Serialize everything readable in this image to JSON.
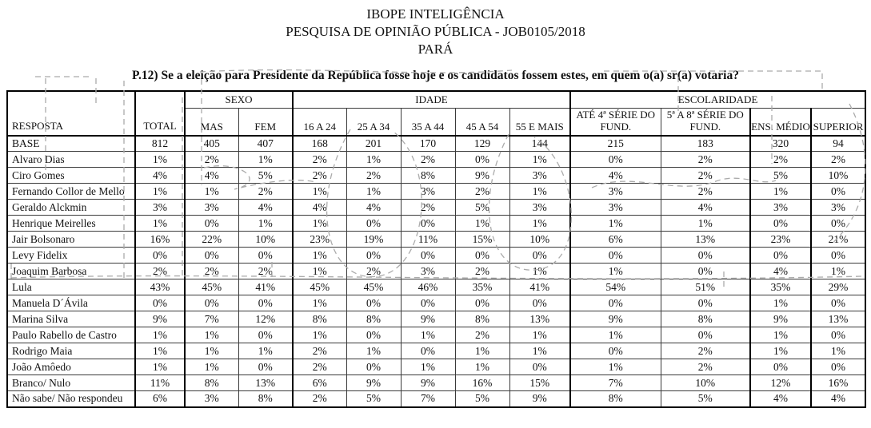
{
  "header": {
    "title_line1": "IBOPE INTELIGÊNCIA",
    "title_line2": "PESQUISA DE OPINIÃO PÚBLICA - JOB0105/2018",
    "title_line3": "PARÁ",
    "question": "P.12) Se a eleição para Presidente da República fosse hoje e os candidatos fossem estes, em quem o(a) sr(a) votaria?"
  },
  "table": {
    "corner_label": "RESPOSTA",
    "total_label": "TOTAL",
    "groups": [
      {
        "label": "SEXO",
        "span": 2
      },
      {
        "label": "IDADE",
        "span": 5
      },
      {
        "label": "ESCOLARIDADE",
        "span": 4
      }
    ],
    "columns": [
      "MAS",
      "FEM",
      "16 A 24",
      "25 A 34",
      "35 A 44",
      "45 A 54",
      "55 E MAIS",
      "ATÉ 4ª SÉRIE DO FUND.",
      "5ª A 8ª SÉRIE DO FUND.",
      "ENS. MÉDIO",
      "SUPERIOR"
    ],
    "base_row": {
      "label": "BASE",
      "values": [
        "812",
        "405",
        "407",
        "168",
        "201",
        "170",
        "129",
        "144",
        "215",
        "183",
        "320",
        "94"
      ]
    },
    "rows": [
      {
        "label": "Alvaro Dias",
        "values": [
          "1%",
          "2%",
          "1%",
          "2%",
          "1%",
          "2%",
          "0%",
          "1%",
          "0%",
          "2%",
          "2%",
          "2%"
        ]
      },
      {
        "label": "Ciro Gomes",
        "values": [
          "4%",
          "4%",
          "5%",
          "2%",
          "2%",
          "8%",
          "9%",
          "3%",
          "4%",
          "2%",
          "5%",
          "10%"
        ]
      },
      {
        "label": "Fernando Collor de Mello",
        "values": [
          "1%",
          "1%",
          "2%",
          "1%",
          "1%",
          "3%",
          "2%",
          "1%",
          "3%",
          "2%",
          "1%",
          "0%"
        ]
      },
      {
        "label": "Geraldo Alckmin",
        "values": [
          "3%",
          "3%",
          "4%",
          "4%",
          "4%",
          "2%",
          "5%",
          "3%",
          "3%",
          "4%",
          "3%",
          "3%"
        ]
      },
      {
        "label": "Henrique Meirelles",
        "values": [
          "1%",
          "0%",
          "1%",
          "1%",
          "0%",
          "0%",
          "1%",
          "1%",
          "1%",
          "1%",
          "0%",
          "0%"
        ]
      },
      {
        "label": "Jair Bolsonaro",
        "values": [
          "16%",
          "22%",
          "10%",
          "23%",
          "19%",
          "11%",
          "15%",
          "10%",
          "6%",
          "13%",
          "23%",
          "21%"
        ]
      },
      {
        "label": "Levy Fidelix",
        "values": [
          "0%",
          "0%",
          "0%",
          "1%",
          "0%",
          "0%",
          "0%",
          "0%",
          "0%",
          "0%",
          "0%",
          "0%"
        ]
      },
      {
        "label": "Joaquim Barbosa",
        "values": [
          "2%",
          "2%",
          "2%",
          "1%",
          "2%",
          "3%",
          "2%",
          "1%",
          "1%",
          "0%",
          "4%",
          "1%"
        ]
      },
      {
        "label": "Lula",
        "values": [
          "43%",
          "45%",
          "41%",
          "45%",
          "45%",
          "46%",
          "35%",
          "41%",
          "54%",
          "51%",
          "35%",
          "29%"
        ]
      },
      {
        "label": "Manuela D´Ávila",
        "values": [
          "0%",
          "0%",
          "0%",
          "1%",
          "0%",
          "0%",
          "0%",
          "0%",
          "0%",
          "0%",
          "1%",
          "0%"
        ]
      },
      {
        "label": "Marina Silva",
        "values": [
          "9%",
          "7%",
          "12%",
          "8%",
          "8%",
          "9%",
          "8%",
          "13%",
          "9%",
          "8%",
          "9%",
          "13%"
        ]
      },
      {
        "label": "Paulo Rabello de Castro",
        "values": [
          "1%",
          "1%",
          "0%",
          "1%",
          "0%",
          "1%",
          "2%",
          "1%",
          "1%",
          "0%",
          "1%",
          "0%"
        ]
      },
      {
        "label": "Rodrigo Maia",
        "values": [
          "1%",
          "1%",
          "1%",
          "2%",
          "1%",
          "0%",
          "1%",
          "1%",
          "0%",
          "2%",
          "1%",
          "1%"
        ]
      },
      {
        "label": "João Amôedo",
        "values": [
          "1%",
          "1%",
          "0%",
          "2%",
          "0%",
          "1%",
          "1%",
          "0%",
          "1%",
          "2%",
          "0%",
          "0%"
        ]
      },
      {
        "label": "Branco/ Nulo",
        "values": [
          "11%",
          "8%",
          "13%",
          "6%",
          "9%",
          "9%",
          "16%",
          "15%",
          "7%",
          "10%",
          "12%",
          "16%"
        ]
      },
      {
        "label": "Não sabe/ Não respondeu",
        "values": [
          "6%",
          "3%",
          "8%",
          "2%",
          "5%",
          "7%",
          "5%",
          "9%",
          "8%",
          "5%",
          "4%",
          "4%"
        ]
      }
    ]
  }
}
